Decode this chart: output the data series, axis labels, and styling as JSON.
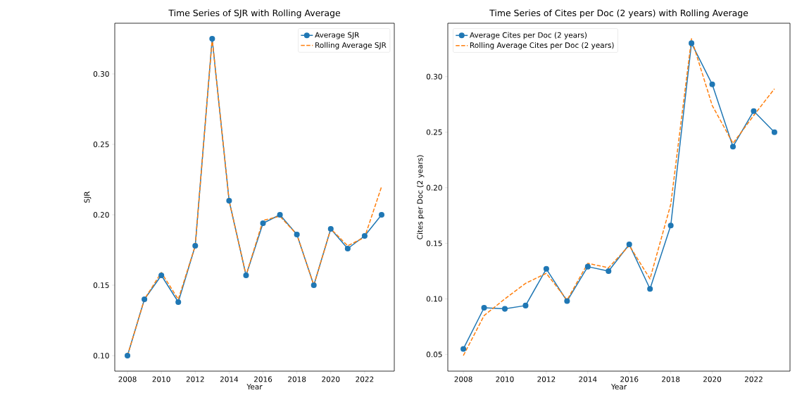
{
  "chart_data": [
    {
      "type": "line",
      "title": "Time Series of SJR with Rolling Average",
      "xlabel": "Year",
      "ylabel": "SJR",
      "x": [
        2008,
        2009,
        2010,
        2011,
        2012,
        2013,
        2014,
        2015,
        2016,
        2017,
        2018,
        2019,
        2020,
        2021,
        2022,
        2023
      ],
      "series": [
        {
          "name": "Average SJR",
          "color": "#1f77b4",
          "marker": "circle",
          "line_style": "solid",
          "values": [
            0.1,
            0.14,
            0.157,
            0.138,
            0.178,
            0.325,
            0.21,
            0.157,
            0.194,
            0.2,
            0.186,
            0.15,
            0.19,
            0.176,
            0.185,
            0.2
          ]
        },
        {
          "name": "Rolling Average SJR",
          "color": "#ff7f0e",
          "marker": "none",
          "line_style": "dashed",
          "values": [
            0.1,
            0.14,
            0.159,
            0.14,
            0.178,
            0.325,
            0.21,
            0.157,
            0.196,
            0.199,
            0.186,
            0.15,
            0.19,
            0.178,
            0.184,
            0.22
          ]
        }
      ],
      "xlim": [
        2007.25,
        2023.75
      ],
      "ylim": [
        0.089,
        0.336
      ],
      "xticks": [
        2008,
        2010,
        2012,
        2014,
        2016,
        2018,
        2020,
        2022
      ],
      "yticks": [
        {
          "value": 0.1,
          "label": "0.10"
        },
        {
          "value": 0.15,
          "label": "0.15"
        },
        {
          "value": 0.2,
          "label": "0.20"
        },
        {
          "value": 0.25,
          "label": "0.25"
        },
        {
          "value": 0.3,
          "label": "0.30"
        }
      ],
      "legend": "top right"
    },
    {
      "type": "line",
      "title": "Time Series of Cites per Doc (2 years) with Rolling Average",
      "xlabel": "Year",
      "ylabel": "Cites per Doc (2 years)",
      "x": [
        2008,
        2009,
        2010,
        2011,
        2012,
        2013,
        2014,
        2015,
        2016,
        2017,
        2018,
        2019,
        2020,
        2021,
        2022,
        2023
      ],
      "series": [
        {
          "name": "Average Cites per Doc (2 years)",
          "color": "#1f77b4",
          "marker": "circle",
          "line_style": "solid",
          "values": [
            0.055,
            0.092,
            0.091,
            0.094,
            0.127,
            0.098,
            0.129,
            0.125,
            0.149,
            0.109,
            0.166,
            0.33,
            0.293,
            0.237,
            0.269,
            0.25
          ]
        },
        {
          "name": "Rolling Average Cites per Doc (2 years)",
          "color": "#ff7f0e",
          "marker": "none",
          "line_style": "dashed",
          "values": [
            0.049,
            0.085,
            0.1,
            0.114,
            0.123,
            0.099,
            0.132,
            0.128,
            0.148,
            0.118,
            0.185,
            0.334,
            0.274,
            0.24,
            0.265,
            0.289
          ]
        }
      ],
      "xlim": [
        2007.25,
        2023.75
      ],
      "ylim": [
        0.035,
        0.348
      ],
      "xticks": [
        2008,
        2010,
        2012,
        2014,
        2016,
        2018,
        2020,
        2022
      ],
      "yticks": [
        {
          "value": 0.05,
          "label": "0.05"
        },
        {
          "value": 0.1,
          "label": "0.10"
        },
        {
          "value": 0.15,
          "label": "0.15"
        },
        {
          "value": 0.2,
          "label": "0.20"
        },
        {
          "value": 0.25,
          "label": "0.25"
        },
        {
          "value": 0.3,
          "label": "0.30"
        }
      ],
      "legend": "top left"
    }
  ]
}
